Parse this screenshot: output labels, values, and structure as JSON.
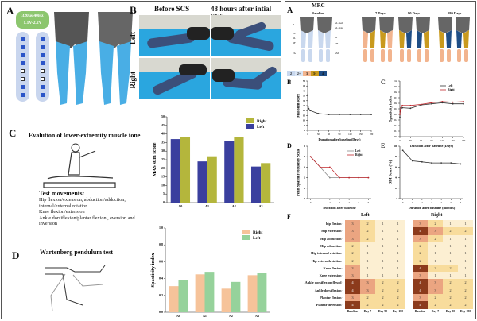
{
  "left_panel": {
    "panel_a": {
      "label": "A",
      "stim_line1": "320μs,40Hz",
      "stim_line2": "1.1V-2.2V"
    },
    "panel_b": {
      "label": "B",
      "col_before": "Before  SCS",
      "col_after": "48 hours after intial SCS",
      "row_left": "Left",
      "row_right": "Right"
    },
    "panel_c": {
      "label": "C",
      "title": "Evalution of lower-extremity muscle tone",
      "movements_heading": "Test movements:",
      "movements": [
        "Hip  flexion/extension, abduction/adduction,",
        "internal/external rotation",
        "Knee  flexion/extension",
        "Ankle dorsiflexion/plantar flexion , eversion and",
        "inversion"
      ]
    },
    "panel_d": {
      "label": "D",
      "title": "Wartenberg pendulum test"
    }
  },
  "right_panel": {
    "panel_a": {
      "label": "A",
      "title": "MRC",
      "timepoints": [
        "Baseline",
        "7 Days",
        "90 Days",
        "180 Days"
      ],
      "muscle_labels": [
        "IL",
        "VL",
        "RL",
        "RF",
        "TA",
        "GL.med",
        "GL.max",
        "BF",
        "SM",
        "GM"
      ],
      "legend": [
        {
          "label": "2",
          "color": "#c9d8ee"
        },
        {
          "label": "2+",
          "color": "#dbe6f5"
        },
        {
          "label": "3",
          "color": "#f2b48e"
        },
        {
          "label": "3+",
          "color": "#c99a1e"
        },
        {
          "label": "4",
          "color": "#1f4e86"
        }
      ]
    },
    "panel_b": {
      "label": "B"
    },
    "panel_c": {
      "label": "C"
    },
    "panel_d": {
      "label": "D"
    },
    "panel_e": {
      "label": "E"
    },
    "panel_f": {
      "label": "F",
      "left_title": "Left",
      "right_title": "Right",
      "columns": [
        "Baseline",
        "Day 7",
        "Day 90",
        "Day 180"
      ],
      "rows": [
        "hip flexion -",
        "Hip extension -",
        "Hip abduction -",
        "Hip adduction -",
        "Hip internal rotation -",
        "Hip externalrotation -",
        "Knee flexion -",
        "Knee extension -",
        "Ankle dorsiflexion flexed -",
        "Ankle dorsiflexion -",
        "Plantar flexion -",
        "Plantar inversion -"
      ],
      "left_values": [
        [
          3,
          2,
          1,
          1
        ],
        [
          3,
          2,
          1,
          1
        ],
        [
          3,
          2,
          1,
          1
        ],
        [
          2,
          1,
          1,
          1
        ],
        [
          2,
          1,
          1,
          1
        ],
        [
          2,
          1,
          1,
          1
        ],
        [
          3,
          1,
          1,
          1
        ],
        [
          3,
          1,
          1,
          1
        ],
        [
          4,
          3,
          2,
          2
        ],
        [
          4,
          3,
          2,
          2
        ],
        [
          3,
          2,
          2,
          2
        ],
        [
          4,
          2,
          2,
          2
        ]
      ],
      "right_values": [
        [
          3,
          2,
          1,
          1
        ],
        [
          4,
          3,
          2,
          2
        ],
        [
          3,
          2,
          1,
          1
        ],
        [
          2,
          1,
          1,
          1
        ],
        [
          2,
          1,
          1,
          1
        ],
        [
          2,
          1,
          1,
          1
        ],
        [
          4,
          2,
          2,
          1
        ],
        [
          3,
          1,
          1,
          1
        ],
        [
          4,
          3,
          2,
          2
        ],
        [
          4,
          3,
          2,
          2
        ],
        [
          3,
          2,
          2,
          2
        ],
        [
          4,
          2,
          2,
          2
        ]
      ],
      "colors": {
        "1": "#fcefd2",
        "2": "#f8dc9c",
        "3": "#eba581",
        "4": "#8c3b1c"
      }
    }
  },
  "chart_data": [
    {
      "id": "mas-bar",
      "type": "bar",
      "categories": [
        "A0",
        "A1",
        "A2",
        "A3"
      ],
      "ylabel": "MAS sum score",
      "ylim": [
        0,
        50
      ],
      "ytick_step": 5,
      "series": [
        {
          "name": "Left",
          "color": "#3a3f9e",
          "values": [
            37,
            24,
            36,
            21
          ]
        },
        {
          "name": "Right",
          "color": "#b4b63c",
          "values": [
            38,
            27,
            38,
            23
          ]
        }
      ],
      "legend_order": [
        "Right",
        "Left"
      ],
      "legend": "top-right"
    },
    {
      "id": "spasticity-bar",
      "type": "bar",
      "categories": [
        "A0",
        "A1",
        "A2",
        "A3"
      ],
      "ylabel": "Spasticity index",
      "ylim": [
        0,
        1.0
      ],
      "ytick_step": 0.2,
      "series": [
        {
          "name": "Right",
          "color": "#f6c39a",
          "values": [
            0.31,
            0.45,
            0.28,
            0.44
          ]
        },
        {
          "name": "Left",
          "color": "#96d29b",
          "values": [
            0.38,
            0.48,
            0.36,
            0.47
          ]
        }
      ],
      "legend_order": [
        "Right",
        "Left"
      ],
      "legend": "top-right"
    },
    {
      "id": "mas-line",
      "type": "line",
      "xlabel": "Duration after baseline(Days)",
      "ylabel": "Mas sum score",
      "xlim": [
        0,
        180
      ],
      "ylim": [
        0,
        50
      ],
      "xticks": [
        0,
        30,
        60,
        90,
        120,
        150,
        180
      ],
      "ytick_step": 5,
      "series": [
        {
          "name": "",
          "color": "#333333",
          "x": [
            0,
            1,
            3,
            7,
            30,
            60,
            90,
            120,
            150,
            180
          ],
          "y": [
            36,
            24,
            22,
            20,
            17,
            16,
            16,
            16,
            16,
            16
          ]
        }
      ]
    },
    {
      "id": "spasticity-line",
      "type": "line",
      "xlabel": "Duration after baseline (Days)",
      "ylabel": "Spasticity index",
      "xlim": [
        0,
        180
      ],
      "ylim": [
        0,
        1.0
      ],
      "xticks": [
        0,
        30,
        60,
        90,
        120,
        150,
        180
      ],
      "ytick_step": 0.1,
      "series": [
        {
          "name": "Left",
          "color": "#333333",
          "x": [
            0,
            1,
            3,
            7,
            30,
            60,
            90,
            120,
            150,
            180
          ],
          "y": [
            0.35,
            0.45,
            0.5,
            0.52,
            0.51,
            0.57,
            0.59,
            0.61,
            0.59,
            0.59
          ]
        },
        {
          "name": "Right",
          "color": "#c0282d",
          "x": [
            0,
            1,
            3,
            7,
            30,
            60,
            90,
            120,
            150,
            180
          ],
          "y": [
            0.4,
            0.47,
            0.52,
            0.56,
            0.56,
            0.58,
            0.61,
            0.63,
            0.62,
            0.63
          ]
        }
      ],
      "legend": "top-right"
    },
    {
      "id": "penn-line",
      "type": "line",
      "xlabel": "Duration after baseline",
      "ylabel": "Penn Spasm Frequency Scale",
      "xlim": [
        -0.3,
        6.3
      ],
      "ylim": [
        0,
        5
      ],
      "xticks": [
        0,
        1,
        2,
        3,
        4,
        5,
        6
      ],
      "ytick_step": 1,
      "series": [
        {
          "name": "Left",
          "color": "#888888",
          "x": [
            0,
            1,
            2,
            3,
            4,
            5,
            6
          ],
          "y": [
            4,
            3,
            2,
            2,
            2,
            2,
            2
          ]
        },
        {
          "name": "Right",
          "color": "#c0282d",
          "x": [
            0,
            1,
            2,
            3,
            4,
            5,
            6
          ],
          "y": [
            4,
            3,
            3,
            2,
            2,
            2,
            2
          ]
        }
      ],
      "legend": "top-right"
    },
    {
      "id": "odi-line",
      "type": "line",
      "xlabel": "Duration after baseline (months)",
      "ylabel": "ODI Score (%)",
      "xlim": [
        -0.3,
        6.3
      ],
      "ylim": [
        0,
        100
      ],
      "xticks": [
        0,
        1,
        2,
        3,
        4,
        5,
        6
      ],
      "ytick_step": 20,
      "series": [
        {
          "name": "",
          "color": "#333333",
          "x": [
            0,
            1,
            2,
            3,
            4,
            5,
            6
          ],
          "y": [
            92,
            72,
            70,
            68,
            68,
            68,
            66
          ]
        }
      ]
    }
  ]
}
